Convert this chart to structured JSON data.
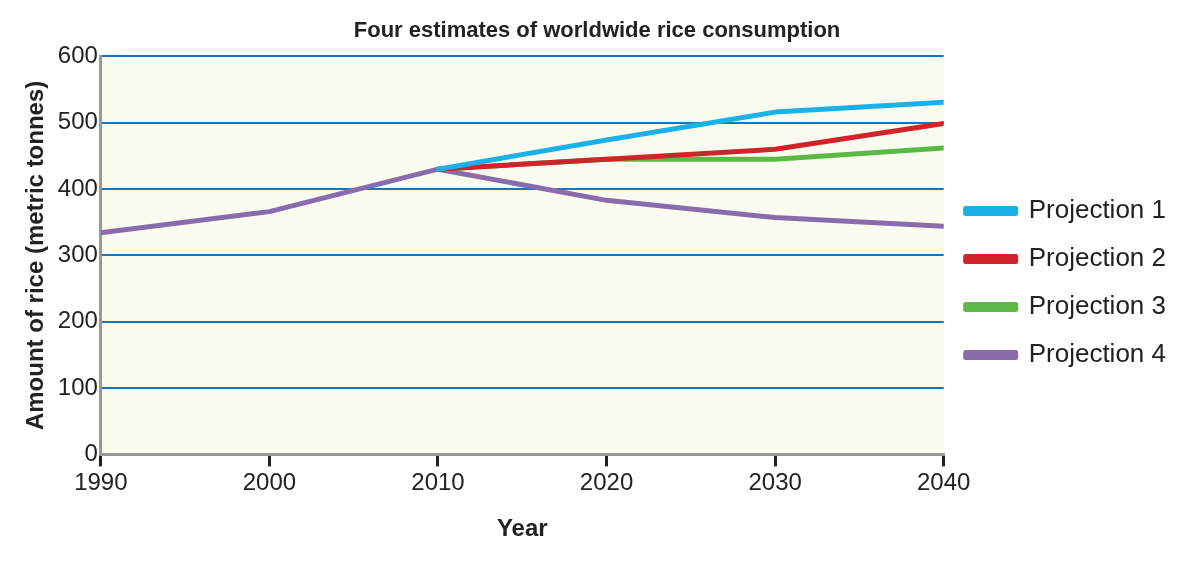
{
  "chart_data": {
    "type": "line",
    "title": "Four estimates of worldwide rice consumption",
    "xlabel": "Year",
    "ylabel": "Amount of rice (metric tonnes)",
    "x": [
      1990,
      2000,
      2010,
      2020,
      2030,
      2040
    ],
    "series": [
      {
        "name": "Projection 1",
        "color": "#1ab0e8",
        "values": [
          null,
          null,
          430,
          474,
          516,
          531
        ]
      },
      {
        "name": "Projection 2",
        "color": "#d2232a",
        "values": [
          null,
          null,
          430,
          445,
          460,
          499
        ]
      },
      {
        "name": "Projection 3",
        "color": "#5db947",
        "values": [
          null,
          null,
          430,
          445,
          445,
          462
        ]
      },
      {
        "name": "Projection 4",
        "color": "#8a6bab",
        "values": [
          334,
          366,
          430,
          383,
          357,
          344
        ]
      }
    ],
    "xlim": [
      1990,
      2040
    ],
    "ylim": [
      0,
      600
    ],
    "xticks": [
      1990,
      2000,
      2010,
      2020,
      2030,
      2040
    ],
    "yticks": [
      0,
      100,
      200,
      300,
      400,
      500,
      600
    ],
    "grid": "y",
    "legend": "right"
  }
}
